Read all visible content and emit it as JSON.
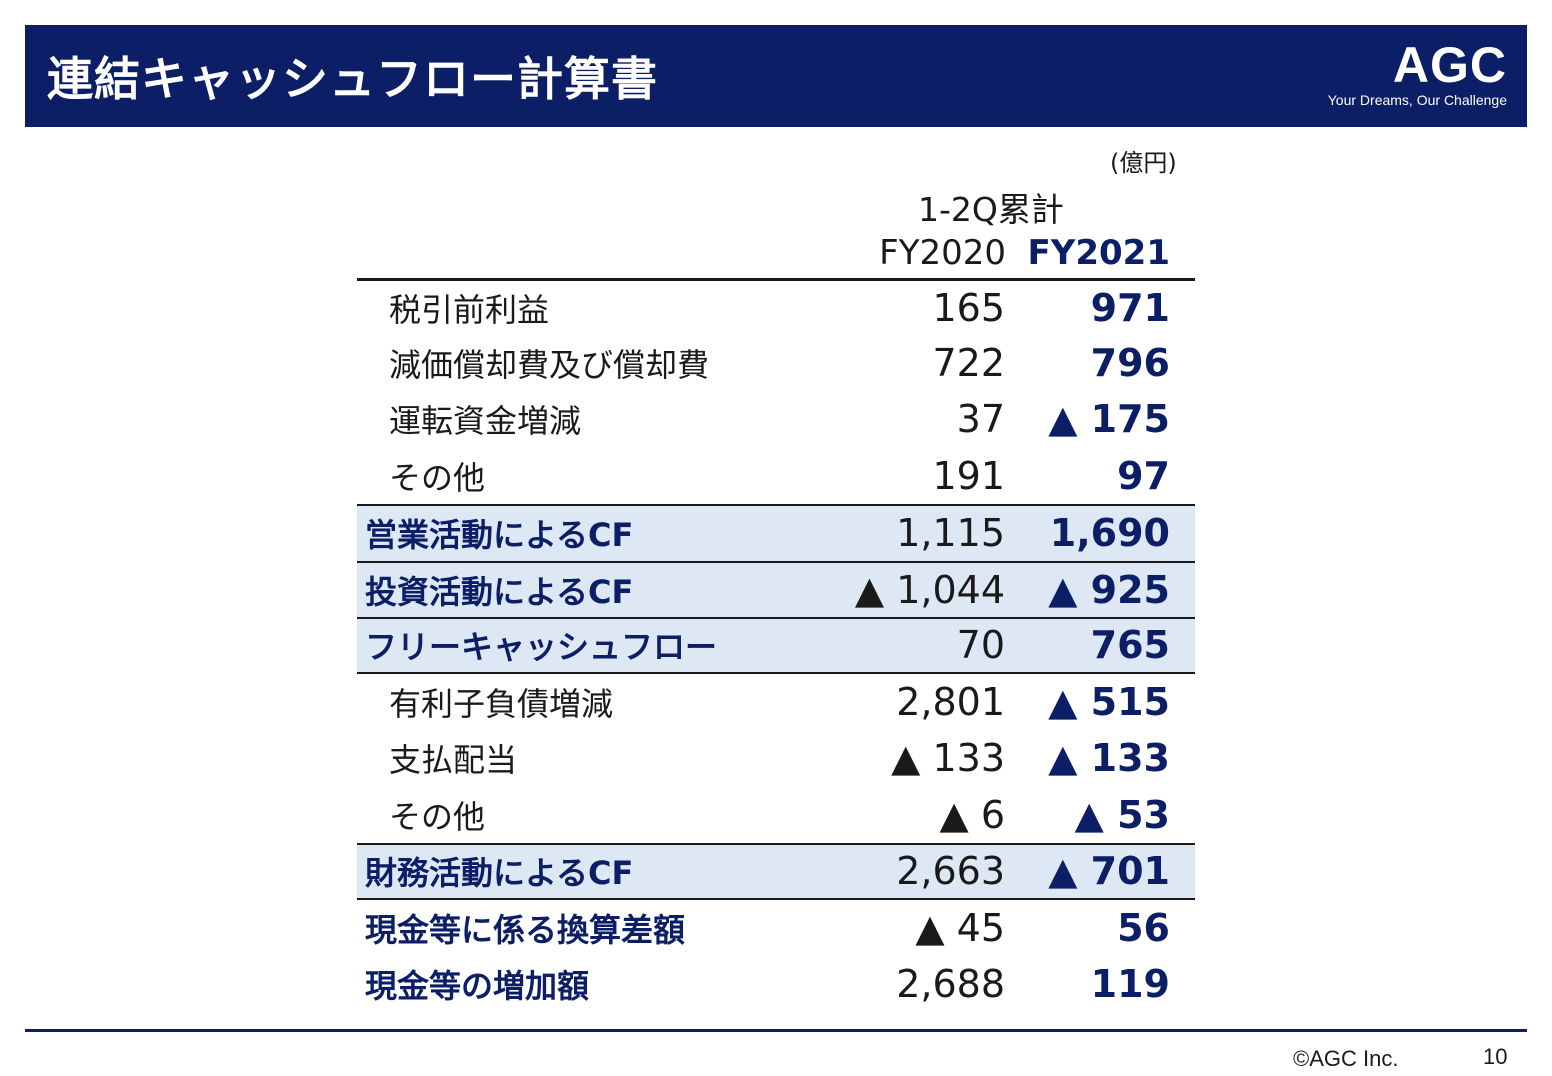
{
  "header": {
    "title": "連結キャッシュフロー計算書",
    "logo": {
      "mark": "AGC",
      "tagline": "Your Dreams, Our Challenge"
    },
    "background_color": "#0b1e66"
  },
  "table": {
    "unit": "(億円)",
    "period": "1-2Q累計",
    "columns": [
      "FY2020",
      "FY2021"
    ],
    "rows": [
      {
        "label": "税引前利益",
        "fy2020": "165",
        "fy2021": "971"
      },
      {
        "label": "減価償却費及び償却費",
        "fy2020": "722",
        "fy2021": "796"
      },
      {
        "label": "運転資金増減",
        "fy2020": "37",
        "fy2021": "▲ 175"
      },
      {
        "label": "その他",
        "fy2020": "191",
        "fy2021": "97"
      },
      {
        "label": "営業活動によるCF",
        "fy2020": "1,115",
        "fy2021": "1,690"
      },
      {
        "label": "投資活動によるCF",
        "fy2020": "▲ 1,044",
        "fy2021": "▲ 925"
      },
      {
        "label": "フリーキャッシュフロー",
        "fy2020": "70",
        "fy2021": "765"
      },
      {
        "label": "有利子負債増減",
        "fy2020": "2,801",
        "fy2021": "▲ 515"
      },
      {
        "label": "支払配当",
        "fy2020": "▲ 133",
        "fy2021": "▲ 133"
      },
      {
        "label": "その他",
        "fy2020": "▲ 6",
        "fy2021": "▲ 53"
      },
      {
        "label": "財務活動によるCF",
        "fy2020": "2,663",
        "fy2021": "▲ 701"
      },
      {
        "label": "現金等に係る換算差額",
        "fy2020": "▲ 45",
        "fy2021": "56"
      },
      {
        "label": "現金等の増加額",
        "fy2020": "2,688",
        "fy2021": "119"
      }
    ],
    "highlight_color": "#dde8f4"
  },
  "footer": {
    "copyright": "©AGC Inc.",
    "page_number": "10"
  }
}
